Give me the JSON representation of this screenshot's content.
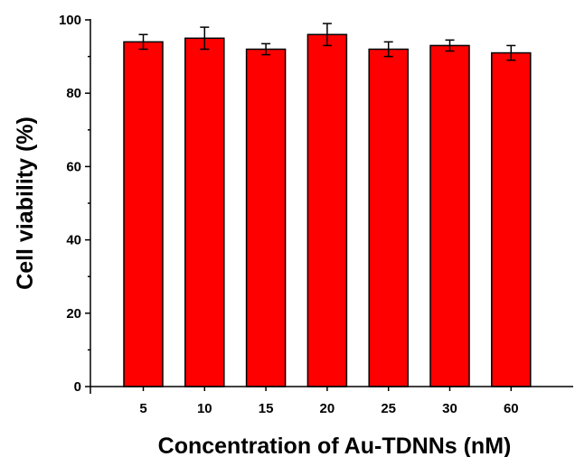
{
  "chart_data": {
    "type": "bar",
    "title": "",
    "xlabel": "Concentration of Au-TDNNs (nM)",
    "ylabel": "Cell viability (%)",
    "categories": [
      "5",
      "10",
      "15",
      "20",
      "25",
      "30",
      "60"
    ],
    "values": [
      94,
      95,
      92,
      96,
      92,
      93,
      91
    ],
    "errors": [
      2,
      3,
      1.5,
      3,
      2,
      1.5,
      2
    ],
    "ylim": [
      0,
      100
    ],
    "yticks": [
      0,
      20,
      40,
      60,
      80,
      100
    ],
    "grid": false,
    "bar_color": "#ff0000",
    "edge_color": "#000000"
  }
}
